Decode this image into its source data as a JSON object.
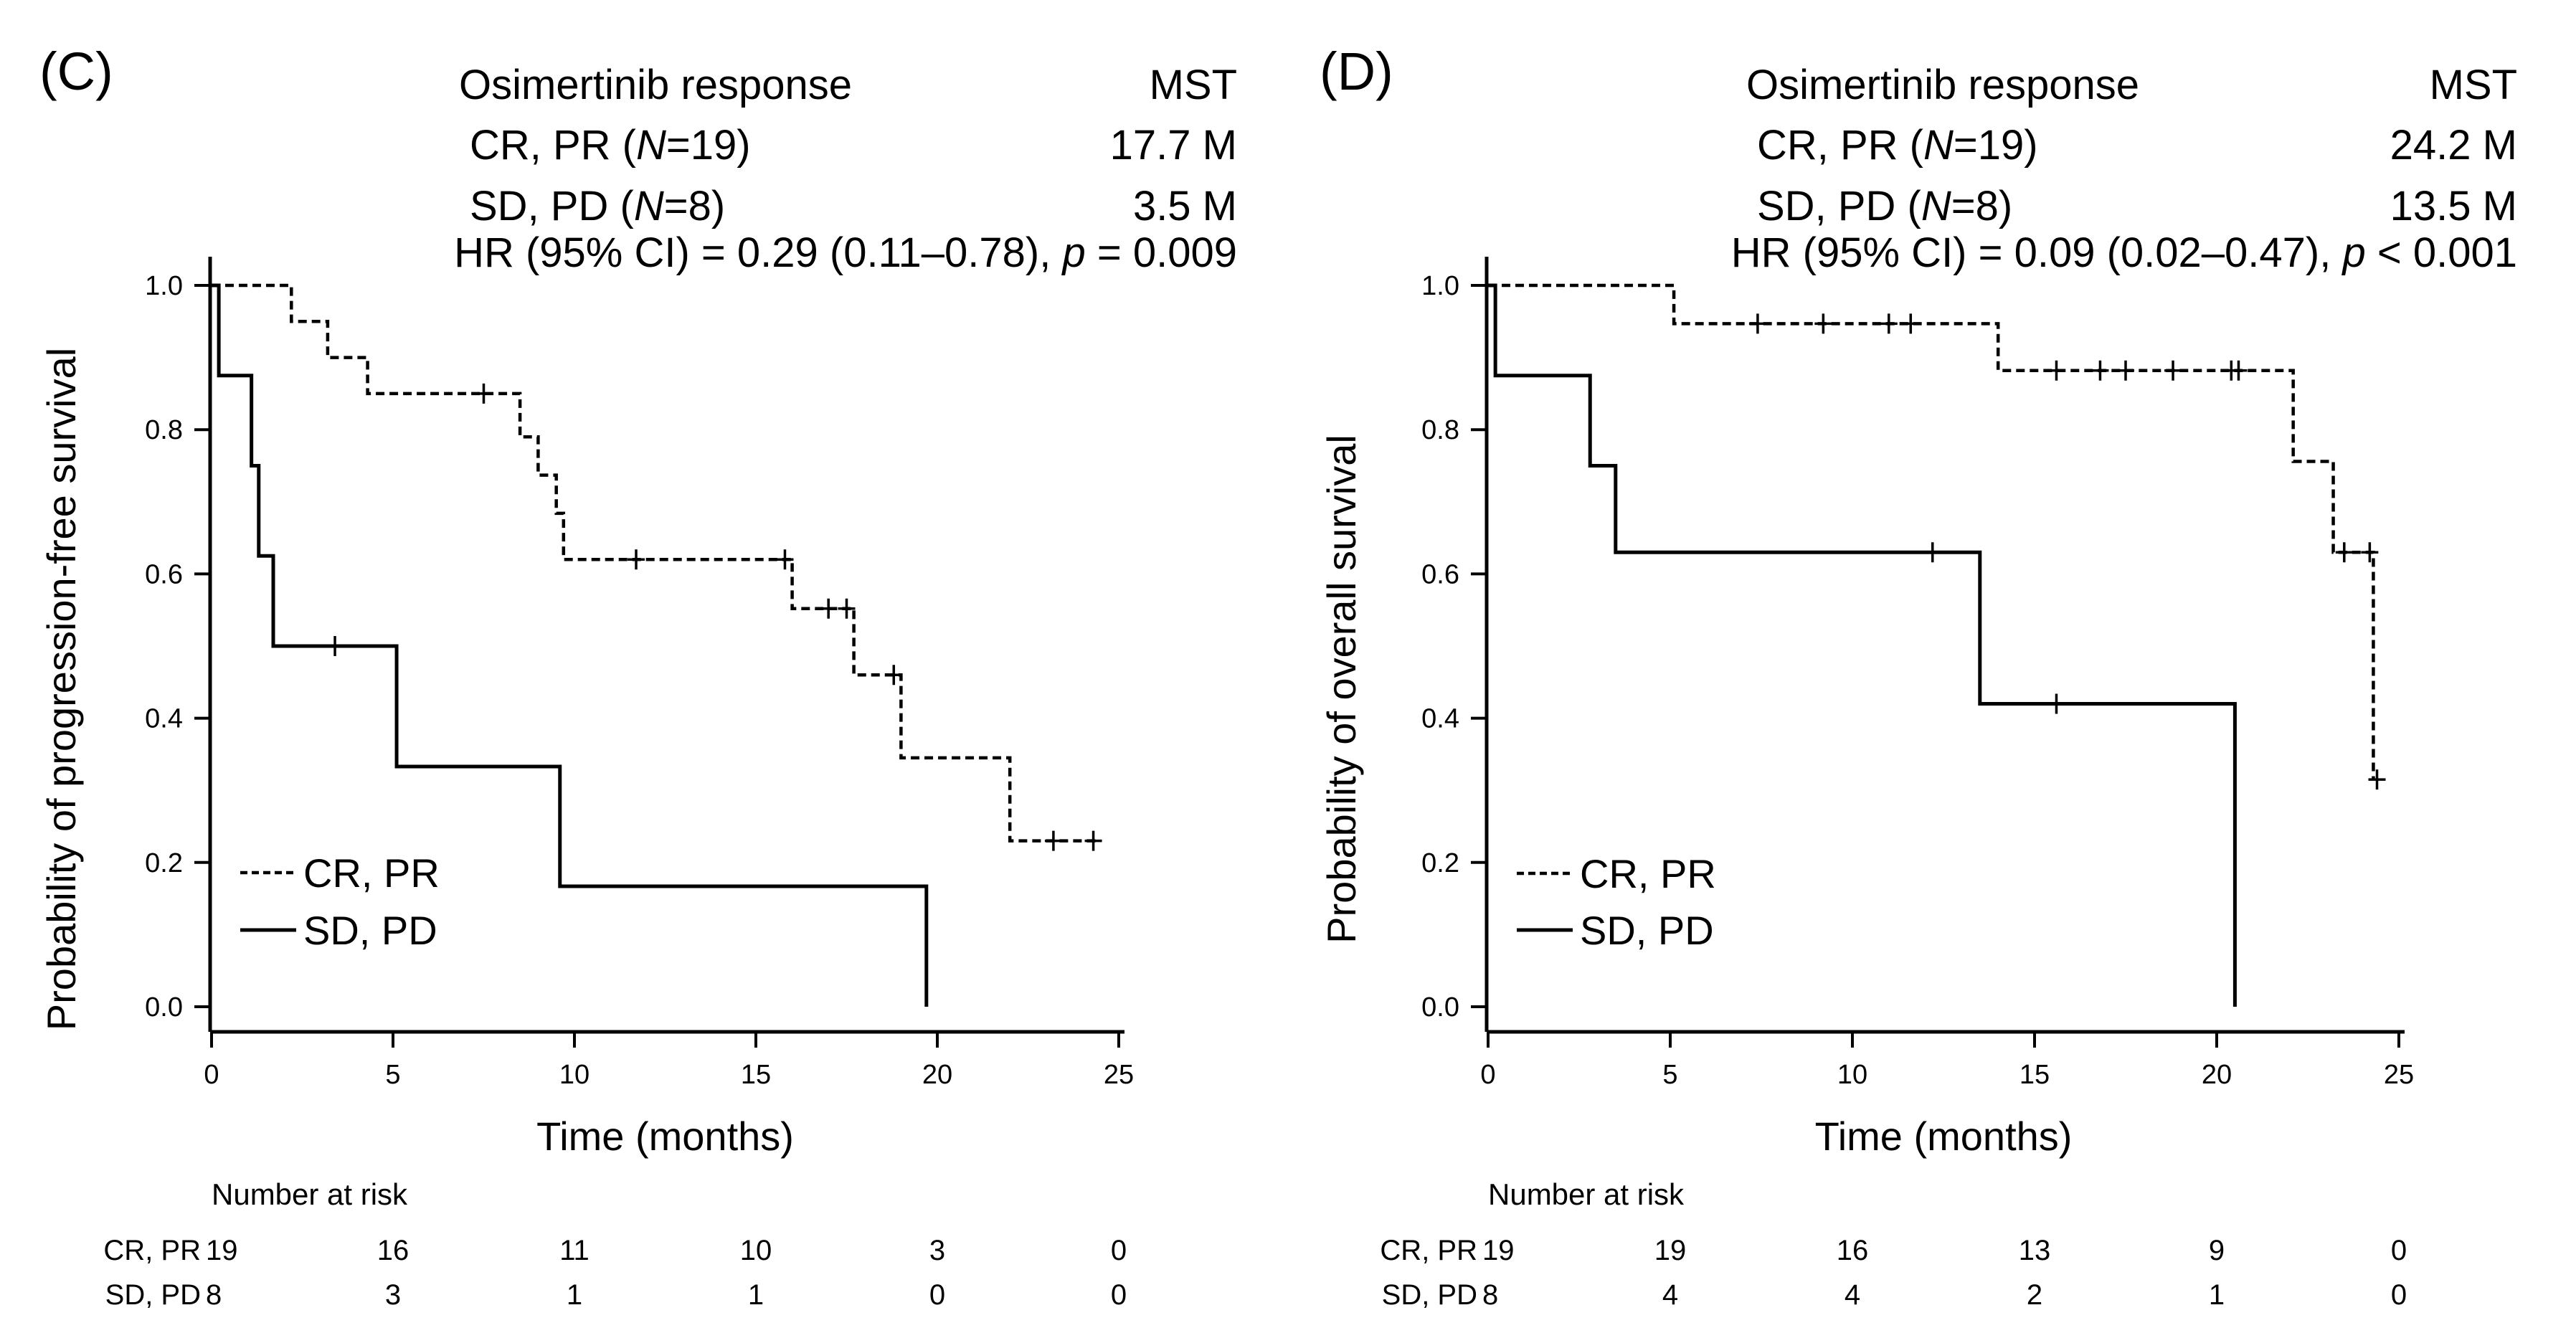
{
  "chart_data": [
    {
      "type": "line",
      "panel_label": "(C)",
      "xlabel": "Time (months)",
      "ylabel": "Probability of progression-free survival",
      "xlim": [
        0,
        25
      ],
      "ylim": [
        0,
        1
      ],
      "x_ticks": [
        "0",
        "5",
        "10",
        "15",
        "20",
        "25"
      ],
      "y_ticks": [
        "0.0",
        "0.2",
        "0.4",
        "0.6",
        "0.8",
        "1.0"
      ],
      "grid": false,
      "annotation": {
        "header_group": "Osimertinib response",
        "header_stat": "MST",
        "rows": [
          {
            "group": "CR, PR",
            "n_prefix": "(",
            "n_italic": "N",
            "n_suffix": "=19)",
            "value": "17.7 M"
          },
          {
            "group": "SD, PD",
            "n_prefix": "(",
            "n_italic": "N",
            "n_suffix": "=8)",
            "value": "3.5 M"
          }
        ],
        "hr_text": "HR (95% CI) = 0.29 (0.11–0.78),",
        "p_italic": "p",
        "p_text": "= 0.009"
      },
      "legend": {
        "position": "bottom-left",
        "entries": [
          "CR, PR",
          "SD, PD"
        ]
      },
      "series": [
        {
          "name": "CR, PR",
          "style": "dashed",
          "steps": [
            [
              0,
              1.0
            ],
            [
              2.2,
              0.95
            ],
            [
              3.2,
              0.9
            ],
            [
              4.3,
              0.85
            ],
            [
              8.5,
              0.79
            ],
            [
              9.0,
              0.737
            ],
            [
              9.5,
              0.684
            ],
            [
              9.7,
              0.62
            ],
            [
              16.0,
              0.552
            ],
            [
              17.7,
              0.46
            ],
            [
              19.0,
              0.345
            ],
            [
              22.0,
              0.23
            ]
          ],
          "end_x": 24.5,
          "censored": [
            [
              7.5,
              0.85
            ],
            [
              11.7,
              0.62
            ],
            [
              15.8,
              0.62
            ],
            [
              17.0,
              0.552
            ],
            [
              17.5,
              0.552
            ],
            [
              18.8,
              0.46
            ],
            [
              23.2,
              0.23
            ],
            [
              24.3,
              0.23
            ]
          ]
        },
        {
          "name": "SD, PD",
          "style": "solid",
          "steps": [
            [
              0,
              1.0
            ],
            [
              0.2,
              0.875
            ],
            [
              1.1,
              0.75
            ],
            [
              1.3,
              0.625
            ],
            [
              1.7,
              0.5
            ],
            [
              5.1,
              0.333
            ],
            [
              9.6,
              0.167
            ],
            [
              19.7,
              0.0
            ]
          ],
          "end_x": 19.7,
          "censored": [
            [
              3.4,
              0.5
            ]
          ]
        }
      ],
      "risk_table": {
        "title": "Number at risk",
        "times": [
          0,
          5,
          10,
          15,
          20,
          25
        ],
        "rows": [
          {
            "label": "CR, PR",
            "values": [
              "19",
              "16",
              "11",
              "10",
              "3",
              "0"
            ]
          },
          {
            "label": "SD, PD",
            "values": [
              "8",
              "3",
              "1",
              "1",
              "0",
              "0"
            ]
          }
        ]
      }
    },
    {
      "type": "line",
      "panel_label": "(D)",
      "xlabel": "Time (months)",
      "ylabel": "Probability of overall survival",
      "xlim": [
        0,
        25
      ],
      "ylim": [
        0,
        1
      ],
      "x_ticks": [
        "0",
        "5",
        "10",
        "15",
        "20",
        "25"
      ],
      "y_ticks": [
        "0.0",
        "0.2",
        "0.4",
        "0.6",
        "0.8",
        "1.0"
      ],
      "grid": false,
      "annotation": {
        "header_group": "Osimertinib response",
        "header_stat": "MST",
        "rows": [
          {
            "group": "CR, PR",
            "n_prefix": "(",
            "n_italic": "N",
            "n_suffix": "=19)",
            "value": "24.2 M"
          },
          {
            "group": "SD, PD",
            "n_prefix": "(",
            "n_italic": "N",
            "n_suffix": "=8)",
            "value": "13.5 M"
          }
        ],
        "hr_text": "HR (95% CI) = 0.09 (0.02–0.47),",
        "p_italic": "p",
        "p_text": "< 0.001"
      },
      "legend": {
        "position": "bottom-left",
        "entries": [
          "CR, PR",
          "SD, PD"
        ]
      },
      "series": [
        {
          "name": "CR, PR",
          "style": "dashed",
          "steps": [
            [
              0,
              1.0
            ],
            [
              5.1,
              0.947
            ],
            [
              14.0,
              0.882
            ],
            [
              22.1,
              0.756
            ],
            [
              23.2,
              0.63
            ],
            [
              24.3,
              0.315
            ]
          ],
          "end_x": 24.3,
          "censored": [
            [
              7.4,
              0.947
            ],
            [
              9.2,
              0.947
            ],
            [
              11.0,
              0.947
            ],
            [
              11.6,
              0.947
            ],
            [
              15.6,
              0.882
            ],
            [
              16.8,
              0.882
            ],
            [
              17.5,
              0.882
            ],
            [
              18.8,
              0.882
            ],
            [
              20.4,
              0.882
            ],
            [
              20.6,
              0.882
            ],
            [
              23.5,
              0.63
            ],
            [
              24.2,
              0.63
            ],
            [
              24.4,
              0.315
            ]
          ]
        },
        {
          "name": "SD, PD",
          "style": "solid",
          "steps": [
            [
              0,
              1.0
            ],
            [
              0.2,
              0.875
            ],
            [
              2.8,
              0.75
            ],
            [
              3.5,
              0.63
            ],
            [
              13.5,
              0.42
            ],
            [
              20.5,
              0.0
            ]
          ],
          "end_x": 20.5,
          "censored": [
            [
              12.2,
              0.63
            ],
            [
              15.6,
              0.42
            ]
          ]
        }
      ],
      "risk_table": {
        "title": "Number at risk",
        "times": [
          0,
          5,
          10,
          15,
          20,
          25
        ],
        "rows": [
          {
            "label": "CR, PR",
            "values": [
              "19",
              "19",
              "16",
              "13",
              "9",
              "0"
            ]
          },
          {
            "label": "SD, PD",
            "values": [
              "8",
              "4",
              "4",
              "2",
              "1",
              "0"
            ]
          }
        ]
      }
    }
  ]
}
